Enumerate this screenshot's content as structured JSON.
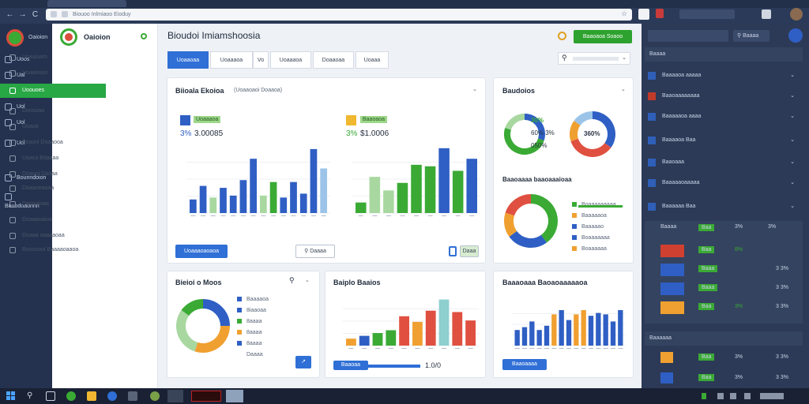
{
  "browser": {
    "address": "Biouoo Inlmiaoo Eioduy",
    "tabs": [
      "Biouoo Inlmia"
    ]
  },
  "rail": {
    "items": [
      "Uoos",
      "Ual",
      "Ual",
      "Uol",
      "Uol",
      "Uol",
      "Bounndoion",
      "Bouodoaunnn"
    ]
  },
  "sidebar": {
    "title": "Oaioion",
    "items": [
      "Uoaaiuam",
      "Uoaaeooo",
      "Uoouoes",
      "Doosoaa",
      "Uoaoa",
      "Boasnl Doaaooa",
      "Uaaca Bdaaaa",
      "Doaooi Daoaa",
      "Daaaoeaoaa",
      "Daoaaioaa",
      "Doaaaoaioa",
      "Doaaa oaaaaoaa",
      "Bouooaoi Baaaaoaaoa"
    ]
  },
  "header": {
    "title": "Bioudoi Imiamshoosia",
    "action_label": "Baaoaoa Soaoo"
  },
  "tabs": [
    "Uoaaoaa",
    "Uoaaaoa",
    "Vo",
    "Uoaaaoa",
    "Doaaoaa",
    "Uoaaa"
  ],
  "search": {
    "value": ""
  },
  "card1": {
    "title": "Biioala Ekoioa",
    "subtitle": "(Uoaaoaoi Doaaoa)",
    "left_badge": "Uoaaaoa",
    "left_value": "3.00085",
    "left_pct": "3%",
    "right_badge": "Baaoaoa",
    "right_value": "$1.0006",
    "right_pct": "3%",
    "button_primary": "Uoaaaoaoaoa",
    "button_secondary": "Daaaa",
    "button_small": "Daaa"
  },
  "card2": {
    "title": "Baudoios",
    "donut1_lines": [
      "30%",
      "60% 3%",
      "050%"
    ],
    "donut2_center": "360%",
    "subtitle": "Baaoaaaa baaoaaaioaa",
    "legend": [
      "Boaaaaaaaaa",
      "Baaaaaoa",
      "Baaaaao",
      "Boaaaaaaa",
      "Boaaaaaa"
    ]
  },
  "card3": {
    "title": "Bieioi o Moos",
    "legend": [
      "Baaaaoa",
      "8iaaoaa",
      "8aaaa",
      "8aaaa",
      "8aaaa",
      "Daaaa"
    ],
    "button_small": "↗"
  },
  "card4": {
    "title": "Baiplo Baaios",
    "button": "Baaoaa",
    "value": "1.0/0"
  },
  "card5": {
    "title": "Baaaoaaa Baoaoaaaaaoa",
    "button": "Baaoaaaa"
  },
  "rightpanel": {
    "search": "",
    "button": "Baaaa",
    "section1": "Baaaa",
    "rows": [
      "Baaaaoa aaaaa",
      "Baaoaaaaaaaa",
      "Baaaaaoa aaaa",
      "Baaaaoa Baa",
      "Baaoaaa",
      "Baaaaaoaaaaa",
      "Baaaaaa Baa"
    ],
    "table_header": [
      "Baaaa",
      "Baa",
      "3%",
      "3%"
    ],
    "table_rows": [
      [
        "",
        "Baa",
        "8%",
        ""
      ],
      [
        "",
        "Baaa",
        "",
        "3 3%"
      ],
      [
        "",
        "Baaa",
        "",
        "3 3%"
      ],
      [
        "",
        "Baa",
        "3%",
        "3 3%"
      ]
    ],
    "section2": "Baaaaaa",
    "bottom_rows": [
      [
        "Baa",
        "3%",
        "3 3%"
      ],
      [
        "Baa",
        "3%",
        "3 3%"
      ]
    ]
  },
  "colors": {
    "blue": "#2f5fc4",
    "green": "#3aaa35",
    "orange": "#f0a030",
    "red": "#e05040",
    "lightgreen": "#a8d8a0",
    "lightblue": "#9cc4e8",
    "teal": "#8ecfcf"
  },
  "chart_data": [
    {
      "type": "bar",
      "values": [
        14,
        28,
        16,
        26,
        18,
        34,
        56,
        18,
        32,
        16,
        32,
        20,
        66,
        46
      ],
      "colors": [
        "blue",
        "blue",
        "lightgreen",
        "blue",
        "blue",
        "blue",
        "blue",
        "lightgreen",
        "green",
        "blue",
        "blue",
        "blue",
        "blue",
        "lightblue"
      ]
    },
    {
      "type": "bar",
      "values": [
        14,
        48,
        30,
        40,
        64,
        62,
        86,
        56,
        72
      ],
      "colors": [
        "green",
        "lightgreen",
        "lightgreen",
        "green",
        "green",
        "green",
        "blue",
        "green",
        "blue"
      ]
    },
    {
      "type": "bar",
      "values": [
        10,
        14,
        18,
        22,
        42,
        34,
        50,
        66,
        48,
        36
      ],
      "colors": [
        "orange",
        "blue",
        "green",
        "green",
        "red",
        "orange",
        "red",
        "teal",
        "red",
        "red"
      ]
    },
    {
      "type": "bar",
      "values": [
        22,
        26,
        34,
        22,
        28,
        44,
        50,
        36,
        44,
        50,
        42,
        46,
        44,
        34,
        50
      ],
      "colors": [
        "blue",
        "blue",
        "blue",
        "blue",
        "blue",
        "orange",
        "blue",
        "blue",
        "orange",
        "orange",
        "blue",
        "blue",
        "blue",
        "blue",
        "blue"
      ]
    }
  ]
}
